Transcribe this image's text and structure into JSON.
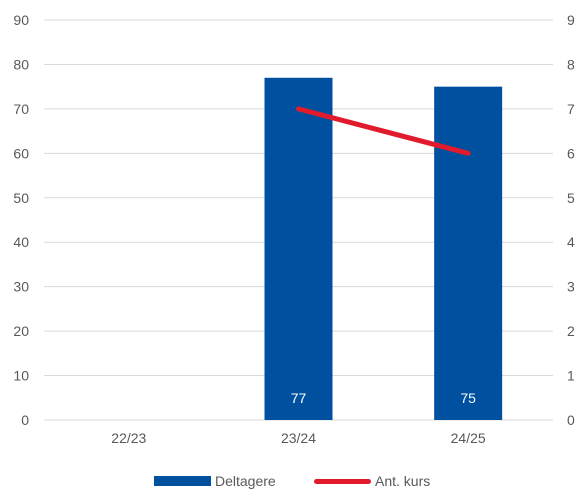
{
  "chart_data": {
    "type": "bar",
    "categories": [
      "22/23",
      "23/24",
      "24/25"
    ],
    "series": [
      {
        "name": "Deltagere",
        "type": "bar",
        "axis": "left",
        "values": [
          null,
          77,
          75
        ],
        "data_labels": [
          "",
          "77",
          "75"
        ]
      },
      {
        "name": "Ant. kurs",
        "type": "line",
        "axis": "right",
        "values": [
          null,
          7,
          6
        ]
      }
    ],
    "y_left": {
      "min": 0,
      "max": 90,
      "step": 10
    },
    "y_right": {
      "min": 0,
      "max": 9,
      "step": 1
    },
    "grid": true,
    "legend_position": "bottom",
    "colors": {
      "bar": "#0050A0",
      "line": "#E11B2C",
      "grid": "#D9D9D9",
      "text": "#595959"
    }
  }
}
